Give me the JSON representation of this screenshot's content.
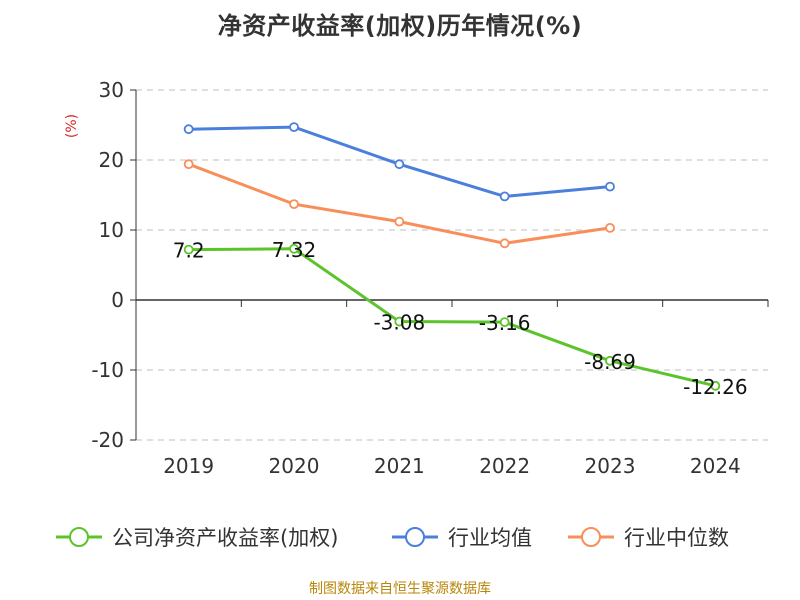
{
  "chart_data": {
    "type": "line",
    "title": "净资产收益率(加权)历年情况(%)",
    "ylabel": "(%)",
    "categories": [
      "2019",
      "2020",
      "2021",
      "2022",
      "2023",
      "2024"
    ],
    "yticks": [
      "30",
      "20",
      "10",
      "0",
      "-10",
      "-20"
    ],
    "ylim": [
      -20,
      30
    ],
    "grid": true,
    "legend_position": "bottom",
    "series": [
      {
        "name": "公司净资产收益率(加权)",
        "color": "#5cc42b",
        "values": [
          7.2,
          7.32,
          -3.08,
          -3.16,
          -8.69,
          -12.26
        ],
        "labels": [
          "7.2",
          "7.32",
          "-3.08",
          "-3.16",
          "-8.69",
          "-12.26"
        ]
      },
      {
        "name": "行业均值",
        "color": "#4a7fdc",
        "values": [
          24.4,
          24.7,
          19.4,
          14.8,
          16.2,
          null
        ]
      },
      {
        "name": "行业中位数",
        "color": "#f88e5a",
        "values": [
          19.4,
          13.7,
          11.2,
          8.1,
          10.3,
          null
        ]
      }
    ]
  },
  "source": "制图数据来自恒生聚源数据库"
}
